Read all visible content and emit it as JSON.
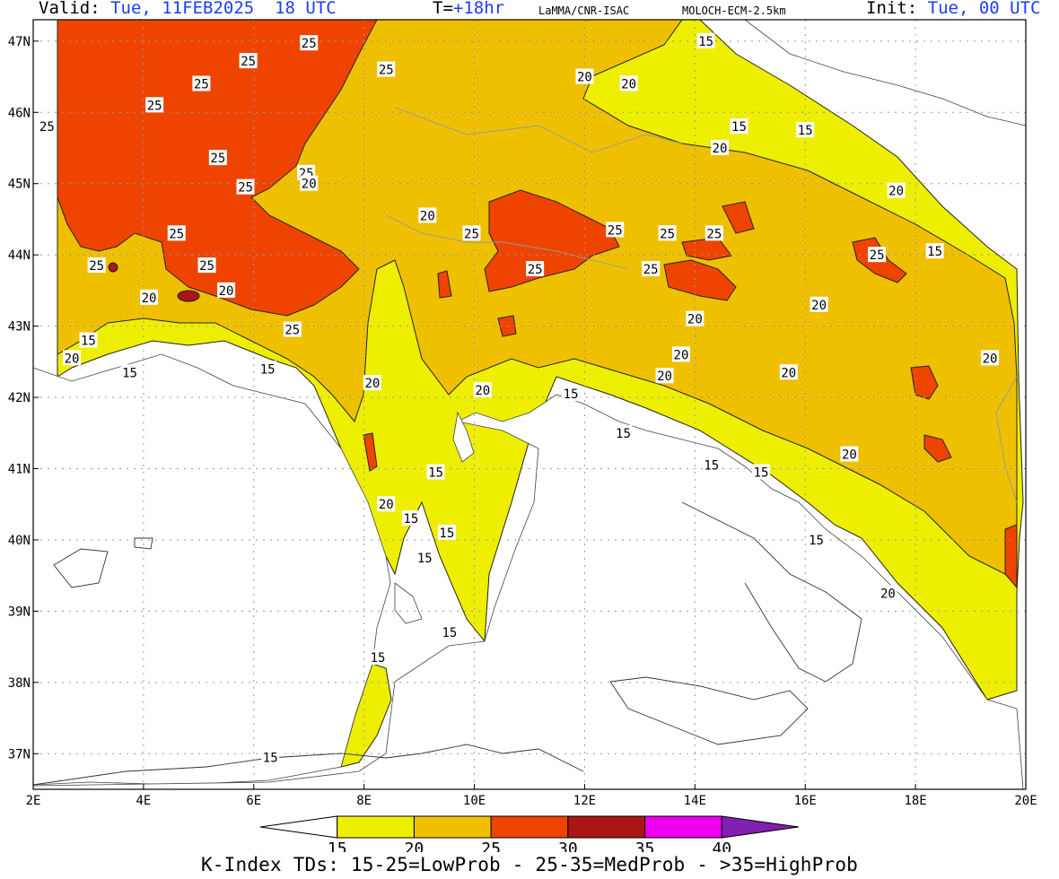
{
  "header": {
    "valid_label": "Valid:",
    "valid_value": "Tue, 11FEB2025  18 UTC",
    "t_label": "T=",
    "t_value": "+18hr",
    "source": "LaMMA/CNR-ISAC",
    "model": "MOLOCH-ECM-2.5km",
    "init_label": "Init:",
    "init_value": "Tue, 00 UTC"
  },
  "map": {
    "lat_labels": [
      "47N",
      "46N",
      "45N",
      "44N",
      "43N",
      "42N",
      "41N",
      "40N",
      "39N",
      "38N",
      "37N"
    ],
    "lon_labels": [
      "2E",
      "4E",
      "6E",
      "8E",
      "10E",
      "12E",
      "14E",
      "16E",
      "18E",
      "20E"
    ],
    "contour_labels": [
      {
        "text": "25",
        "lat": 46.97,
        "lon": 7.0
      },
      {
        "text": "25",
        "lat": 46.72,
        "lon": 5.9
      },
      {
        "text": "25",
        "lat": 46.1,
        "lon": 4.2
      },
      {
        "text": "25",
        "lat": 45.8,
        "lon": 2.25
      },
      {
        "text": "25",
        "lat": 45.36,
        "lon": 5.35
      },
      {
        "text": "25",
        "lat": 44.95,
        "lon": 5.85
      },
      {
        "text": "25",
        "lat": 44.3,
        "lon": 4.6
      },
      {
        "text": "25",
        "lat": 43.85,
        "lon": 3.15
      },
      {
        "text": "25",
        "lat": 43.85,
        "lon": 5.15
      },
      {
        "text": "25",
        "lat": 42.95,
        "lon": 6.7
      },
      {
        "text": "25",
        "lat": 45.15,
        "lon": 6.95
      },
      {
        "text": "25",
        "lat": 46.4,
        "lon": 5.05
      },
      {
        "text": "25",
        "lat": 46.6,
        "lon": 8.4
      },
      {
        "text": "25",
        "lat": 44.3,
        "lon": 9.95
      },
      {
        "text": "25",
        "lat": 43.8,
        "lon": 11.1
      },
      {
        "text": "25",
        "lat": 44.35,
        "lon": 12.55
      },
      {
        "text": "25",
        "lat": 44.3,
        "lon": 13.5
      },
      {
        "text": "25",
        "lat": 44.3,
        "lon": 14.35
      },
      {
        "text": "25",
        "lat": 43.8,
        "lon": 13.2
      },
      {
        "text": "25",
        "lat": 44.0,
        "lon": 17.3
      },
      {
        "text": "20",
        "lat": 45.0,
        "lon": 7.0
      },
      {
        "text": "20",
        "lat": 44.55,
        "lon": 9.15
      },
      {
        "text": "20",
        "lat": 43.5,
        "lon": 5.5
      },
      {
        "text": "20",
        "lat": 43.4,
        "lon": 4.1
      },
      {
        "text": "20",
        "lat": 42.55,
        "lon": 2.7
      },
      {
        "text": "20",
        "lat": 42.2,
        "lon": 8.15
      },
      {
        "text": "20",
        "lat": 42.1,
        "lon": 10.15
      },
      {
        "text": "20",
        "lat": 40.5,
        "lon": 8.4
      },
      {
        "text": "20",
        "lat": 46.5,
        "lon": 12.0
      },
      {
        "text": "20",
        "lat": 46.4,
        "lon": 12.8
      },
      {
        "text": "20",
        "lat": 45.5,
        "lon": 14.45
      },
      {
        "text": "20",
        "lat": 44.9,
        "lon": 17.65
      },
      {
        "text": "20",
        "lat": 43.1,
        "lon": 14.0
      },
      {
        "text": "20",
        "lat": 42.6,
        "lon": 13.75
      },
      {
        "text": "20",
        "lat": 42.3,
        "lon": 13.45
      },
      {
        "text": "20",
        "lat": 42.35,
        "lon": 15.7
      },
      {
        "text": "20",
        "lat": 43.3,
        "lon": 16.25
      },
      {
        "text": "20",
        "lat": 42.55,
        "lon": 19.35
      },
      {
        "text": "20",
        "lat": 41.2,
        "lon": 16.8
      },
      {
        "text": "20",
        "lat": 39.25,
        "lon": 17.5
      },
      {
        "text": "15",
        "lat": 47.0,
        "lon": 14.2
      },
      {
        "text": "15",
        "lat": 45.8,
        "lon": 14.8
      },
      {
        "text": "15",
        "lat": 45.75,
        "lon": 16.0
      },
      {
        "text": "15",
        "lat": 44.05,
        "lon": 18.35
      },
      {
        "text": "15",
        "lat": 42.8,
        "lon": 3.0
      },
      {
        "text": "15",
        "lat": 42.35,
        "lon": 3.75
      },
      {
        "text": "15",
        "lat": 42.4,
        "lon": 6.25
      },
      {
        "text": "15",
        "lat": 40.3,
        "lon": 8.85
      },
      {
        "text": "15",
        "lat": 39.75,
        "lon": 9.1
      },
      {
        "text": "15",
        "lat": 40.95,
        "lon": 9.3
      },
      {
        "text": "15",
        "lat": 40.1,
        "lon": 9.5
      },
      {
        "text": "15",
        "lat": 38.7,
        "lon": 9.55
      },
      {
        "text": "15",
        "lat": 38.35,
        "lon": 8.25
      },
      {
        "text": "15",
        "lat": 36.95,
        "lon": 6.3
      },
      {
        "text": "15",
        "lat": 41.5,
        "lon": 12.7
      },
      {
        "text": "15",
        "lat": 41.05,
        "lon": 14.3
      },
      {
        "text": "15",
        "lat": 40.95,
        "lon": 15.2
      },
      {
        "text": "15",
        "lat": 40.0,
        "lon": 16.2
      },
      {
        "text": "15",
        "lat": 42.05,
        "lon": 11.75
      }
    ]
  },
  "legend": {
    "ticks": [
      "15",
      "20",
      "25",
      "30",
      "35",
      "40"
    ],
    "colors": [
      "#ffffff",
      "#eeee00",
      "#eec000",
      "#ee4400",
      "#aa1515",
      "#ee00ee",
      "#8020b0"
    ],
    "footer": "K-Index TDs: 15-25=LowProb - 25-35=MedProb - >35=HighProb"
  },
  "field_colors": {
    "k15": "#eeee00",
    "k20": "#eec000",
    "k25": "#ee4400",
    "k30": "#aa1515"
  }
}
